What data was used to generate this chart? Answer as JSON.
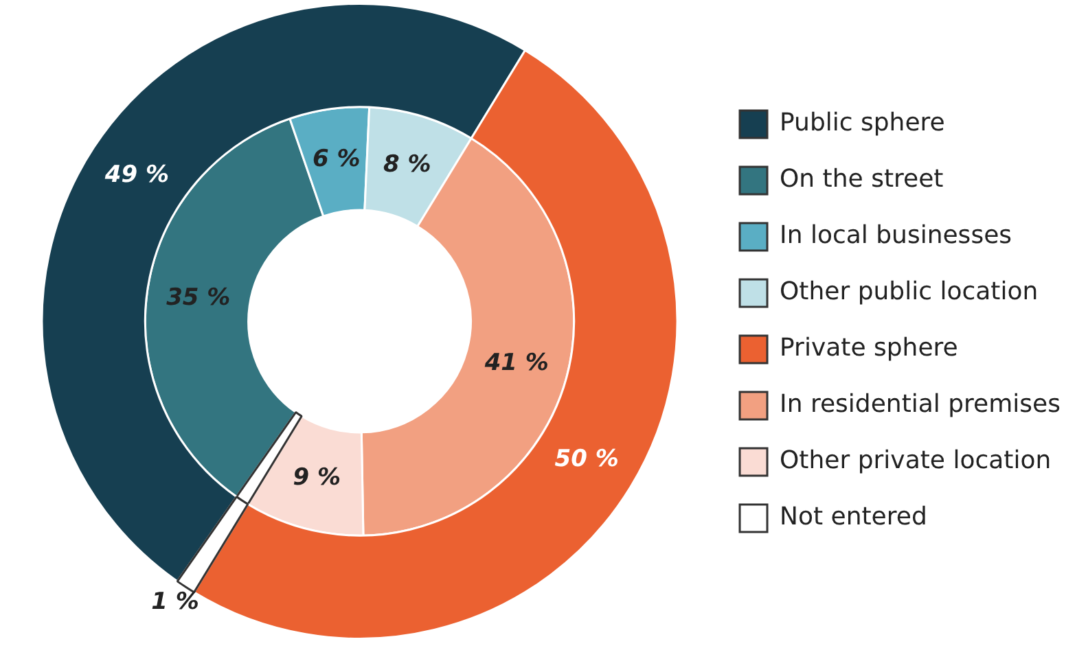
{
  "chart_data": {
    "type": "donut",
    "categories": [
      "Public sphere",
      "On the street",
      "In local businesses",
      "Other public location",
      "Private sphere",
      "In residential premises",
      "Other private location",
      "Not entered"
    ],
    "colors": [
      "#163f51",
      "#337580",
      "#5aaec4",
      "#bfe0e7",
      "#eb6131",
      "#f2a081",
      "#fadcd4",
      "#ffffff"
    ],
    "series": [
      {
        "values": [
          49,
          null,
          null,
          null,
          50,
          null,
          null,
          1
        ],
        "value_labels": [
          "49 %",
          null,
          null,
          null,
          "50 %",
          null,
          null,
          "1 %"
        ]
      },
      {
        "values": [
          null,
          35,
          6,
          8,
          null,
          41,
          9,
          1
        ],
        "value_labels": [
          null,
          "35 %",
          "6 %",
          "8 %",
          null,
          "41 %",
          "9 %",
          null
        ]
      }
    ],
    "legend": "right"
  }
}
